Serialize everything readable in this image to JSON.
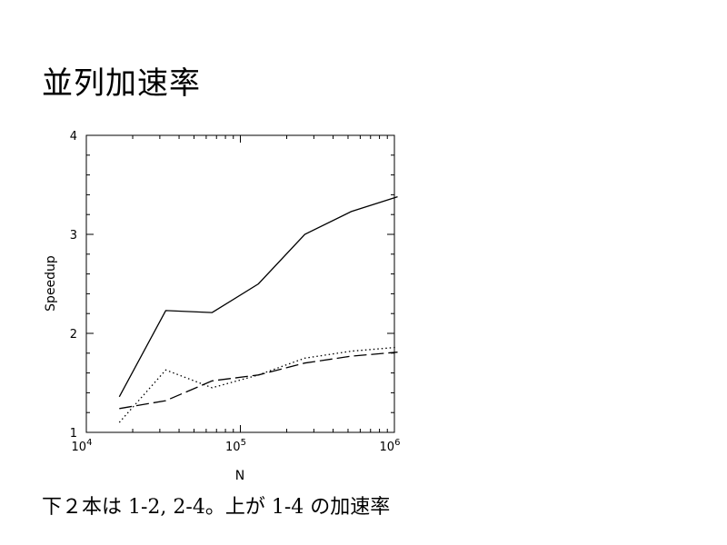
{
  "slide": {
    "title": "並列加速率",
    "caption": "下２本は 1-2, 2-4。上が 1-4 の加速率"
  },
  "chart_data": {
    "type": "line",
    "xlabel": "N",
    "ylabel": "Speedup",
    "xscale": "log",
    "xlim": [
      10000,
      1000000
    ],
    "ylim": [
      1,
      4
    ],
    "grid": false,
    "x_tick_labels": [
      {
        "base": "10",
        "exp": "4",
        "value": 10000
      },
      {
        "base": "10",
        "exp": "5",
        "value": 100000
      },
      {
        "base": "10",
        "exp": "6",
        "value": 1000000
      }
    ],
    "y_tick_labels": [
      "1",
      "2",
      "3",
      "4"
    ],
    "series": [
      {
        "style": "solid",
        "x": [
          16384,
          32768,
          65536,
          131072,
          262144,
          524288,
          1048576
        ],
        "y": [
          1.36,
          2.23,
          2.21,
          2.5,
          3.0,
          3.23,
          3.38
        ]
      },
      {
        "style": "dotted",
        "x": [
          16384,
          32768,
          65536,
          131072,
          262144,
          524288,
          1048576
        ],
        "y": [
          1.1,
          1.63,
          1.45,
          1.58,
          1.75,
          1.82,
          1.86
        ]
      },
      {
        "style": "dashed",
        "x": [
          16384,
          32768,
          65536,
          131072,
          262144,
          524288,
          1048576
        ],
        "y": [
          1.24,
          1.32,
          1.52,
          1.58,
          1.7,
          1.77,
          1.81
        ]
      }
    ]
  }
}
